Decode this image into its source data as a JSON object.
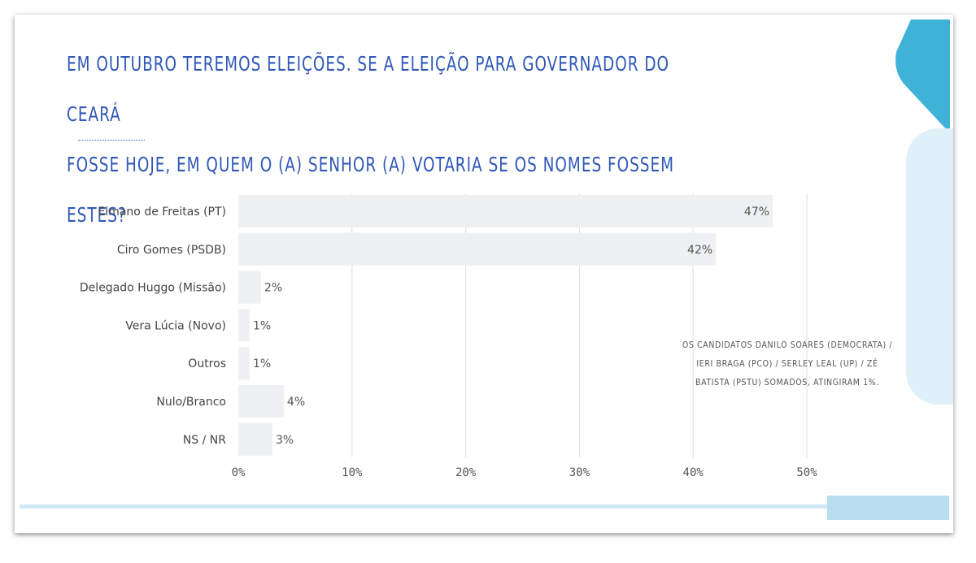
{
  "title": {
    "line1": "EM OUTUBRO TEREMOS ELEIÇÕES. SE A ELEIÇÃO PARA GOVERNADOR DO CEARÁ",
    "line2": "FOSSE HOJE, EM QUEM O (A) SENHOR (A) VOTARIA SE OS NOMES FOSSEM ESTES?"
  },
  "note": "OS CANDIDATOS DANILO SOARES (DEMOCRATA) / IERI BRAGA (PCO) / SERLEY LEAL (UP) / ZÉ BATISTA (PSTU) SOMADOS, ATINGIRAM 1%.",
  "colors": {
    "title": "#2f58b8",
    "bar": "#eef0f1",
    "gridline": "#dddddd",
    "accent_light": "#cfe9f6",
    "accent_dark": "#3fb2d8"
  },
  "chart_data": {
    "type": "bar",
    "orientation": "horizontal",
    "categories": [
      "Elmano de Freitas (PT)",
      "Ciro Gomes (PSDB)",
      "Delegado Huggo (Missão)",
      "Vera Lúcia (Novo)",
      "Outros",
      "Nulo/Branco",
      "NS / NR"
    ],
    "values": [
      47,
      42,
      2,
      1,
      1,
      4,
      3
    ],
    "value_labels": [
      "47%",
      "42%",
      "2%",
      "1%",
      "1%",
      "4%",
      "3%"
    ],
    "xlim": [
      0,
      50
    ],
    "xticks": [
      0,
      10,
      20,
      30,
      40,
      50
    ],
    "xtick_labels": [
      "0%",
      "10%",
      "20%",
      "30%",
      "40%",
      "50%"
    ],
    "grid": true,
    "legend": "none"
  }
}
